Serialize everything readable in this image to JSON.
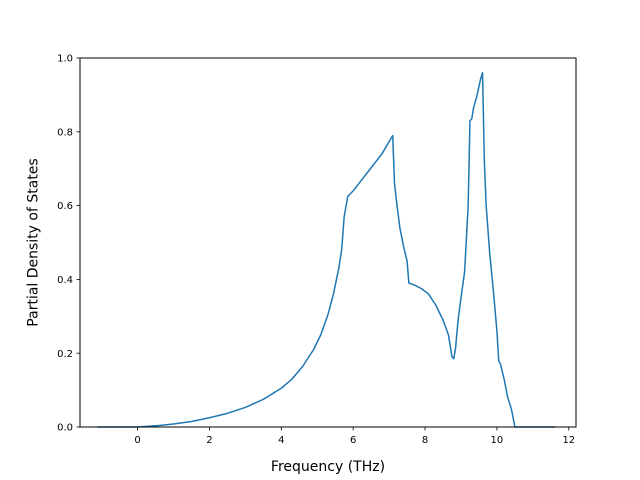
{
  "chart_data": {
    "type": "line",
    "title": "",
    "xlabel": "Frequency (THz)",
    "ylabel": "Partial Density of States",
    "xlim": [
      -1.6,
      12.2
    ],
    "ylim": [
      0.0,
      1.0
    ],
    "xticks": [
      0,
      2,
      4,
      6,
      8,
      10,
      12
    ],
    "xtick_labels": [
      "0",
      "2",
      "4",
      "6",
      "8",
      "10",
      "12"
    ],
    "yticks": [
      0.0,
      0.2,
      0.4,
      0.6,
      0.8,
      1.0
    ],
    "ytick_labels": [
      "0.0",
      "0.2",
      "0.4",
      "0.6",
      "0.8",
      "1.0"
    ],
    "grid": false,
    "legend": null,
    "colors": {
      "line": "#1f77b4"
    },
    "series": [
      {
        "x": [
          -1.1,
          0.0,
          0.3,
          0.6,
          1.0,
          1.5,
          2.0,
          2.5,
          3.0,
          3.5,
          4.0,
          4.3,
          4.6,
          4.9,
          5.1,
          5.3,
          5.45,
          5.6,
          5.68,
          5.75,
          5.85,
          6.0,
          6.4,
          6.8,
          7.1,
          7.15,
          7.22,
          7.3,
          7.4,
          7.5,
          7.55,
          7.7,
          7.9,
          8.1,
          8.3,
          8.5,
          8.65,
          8.75,
          8.8,
          8.85,
          8.92,
          9.0,
          9.1,
          9.2,
          9.25,
          9.3,
          9.35,
          9.45,
          9.55,
          9.6,
          9.65,
          9.7,
          9.8,
          9.9,
          10.0,
          10.05,
          10.1,
          10.2,
          10.3,
          10.4,
          10.5,
          10.55,
          11.0,
          11.6
        ],
        "y": [
          0.0,
          0.0,
          0.002,
          0.004,
          0.008,
          0.015,
          0.025,
          0.037,
          0.053,
          0.075,
          0.105,
          0.13,
          0.165,
          0.21,
          0.25,
          0.305,
          0.36,
          0.43,
          0.48,
          0.57,
          0.625,
          0.64,
          0.69,
          0.74,
          0.79,
          0.66,
          0.6,
          0.54,
          0.49,
          0.45,
          0.39,
          0.385,
          0.375,
          0.36,
          0.33,
          0.29,
          0.25,
          0.19,
          0.185,
          0.215,
          0.29,
          0.35,
          0.42,
          0.6,
          0.83,
          0.835,
          0.865,
          0.9,
          0.945,
          0.96,
          0.72,
          0.6,
          0.47,
          0.37,
          0.26,
          0.18,
          0.17,
          0.13,
          0.08,
          0.05,
          0.0,
          0.0,
          0.0,
          0.0
        ]
      }
    ]
  }
}
